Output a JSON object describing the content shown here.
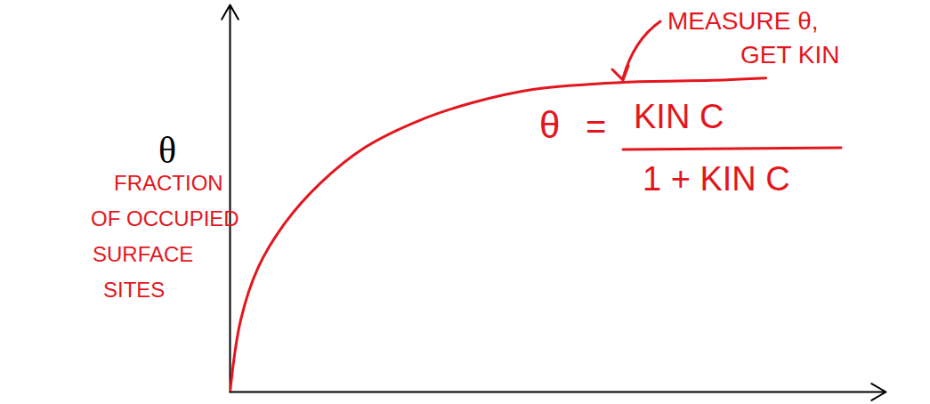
{
  "chart_data": {
    "type": "line",
    "y_label": "θ",
    "x": [
      0,
      0.16,
      0.43,
      0.84,
      1.38,
      2.06,
      2.88,
      3.69,
      4.64,
      6.0,
      7.35,
      8.17
    ],
    "values": [
      0,
      1.84,
      3.22,
      4.37,
      5.4,
      6.32,
      7.01,
      7.47,
      7.82,
      8.0,
      8.05,
      8.11
    ],
    "color": "#e3161e",
    "xlim": [
      0,
      10
    ],
    "ylim": [
      0,
      10
    ],
    "tick_labels": false,
    "annotations": {
      "pointer": "MEASURE θ,\nGET KIN",
      "y_description": "FRACTION\nOF OCCUPIED\nSURFACE\nSITES",
      "formula": {
        "lhs": "θ",
        "equals": "=",
        "numerator": "KIN C",
        "denominator": "1 + KIN C"
      }
    }
  }
}
